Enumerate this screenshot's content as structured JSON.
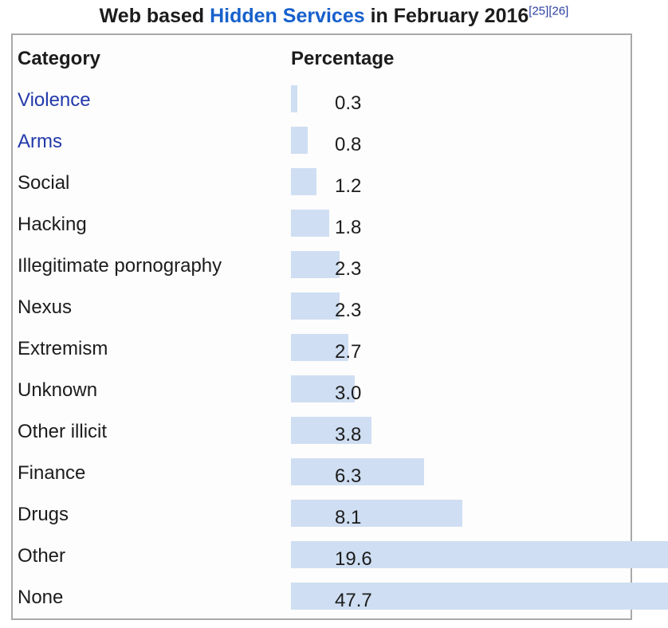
{
  "caption": {
    "prefix": "Web based ",
    "link_text": "Hidden Services",
    "suffix": " in February 2016",
    "refs": [
      "[25]",
      "[26]"
    ]
  },
  "table": {
    "headers": {
      "category": "Category",
      "percentage": "Percentage"
    },
    "rows": [
      {
        "label": "Violence",
        "display": "0.3",
        "value": 0.3,
        "is_link": true
      },
      {
        "label": "Arms",
        "display": "0.8",
        "value": 0.8,
        "is_link": true
      },
      {
        "label": "Social",
        "display": "1.2",
        "value": 1.2,
        "is_link": false
      },
      {
        "label": "Hacking",
        "display": "1.8",
        "value": 1.8,
        "is_link": false
      },
      {
        "label": "Illegitimate pornography",
        "display": "2.3",
        "value": 2.3,
        "is_link": false
      },
      {
        "label": "Nexus",
        "display": "2.3",
        "value": 2.3,
        "is_link": false
      },
      {
        "label": "Extremism",
        "display": "2.7",
        "value": 2.7,
        "is_link": false
      },
      {
        "label": "Unknown",
        "display": "3.0",
        "value": 3.0,
        "is_link": false
      },
      {
        "label": "Other illicit",
        "display": "3.8",
        "value": 3.8,
        "is_link": false
      },
      {
        "label": "Finance",
        "display": "6.3",
        "value": 6.3,
        "is_link": false
      },
      {
        "label": "Drugs",
        "display": "8.1",
        "value": 8.1,
        "is_link": false
      },
      {
        "label": "Other",
        "display": "19.6",
        "value": 19.6,
        "is_link": false
      },
      {
        "label": "None",
        "display": "47.7",
        "value": 47.7,
        "is_link": false
      }
    ]
  },
  "colors": {
    "bar_fill": "#cfdef2",
    "table_border": "#a9a9a9",
    "link_blue": "#2239aa",
    "title_link_blue": "#1660cc",
    "ref_blue": "#2b3fa0",
    "text_black": "#1c1c1c"
  },
  "chart_data": {
    "type": "bar",
    "orientation": "horizontal",
    "title": "Web based Hidden Services in February 2016",
    "categories": [
      "Violence",
      "Arms",
      "Social",
      "Hacking",
      "Illegitimate pornography",
      "Nexus",
      "Extremism",
      "Unknown",
      "Other illicit",
      "Finance",
      "Drugs",
      "Other",
      "None"
    ],
    "values": [
      0.3,
      0.8,
      1.2,
      1.8,
      2.3,
      2.3,
      2.7,
      3.0,
      3.8,
      6.3,
      8.1,
      19.6,
      47.7
    ],
    "xlabel": "Percentage",
    "ylabel": "Category",
    "xlim": [
      0,
      17.8
    ],
    "grid": false,
    "legend": false,
    "notes": "Bars for Other (19.6) and None (47.7) overflow the table border and are clipped at the image's right edge; pixel scale is ~26.5 px per percentage point."
  }
}
